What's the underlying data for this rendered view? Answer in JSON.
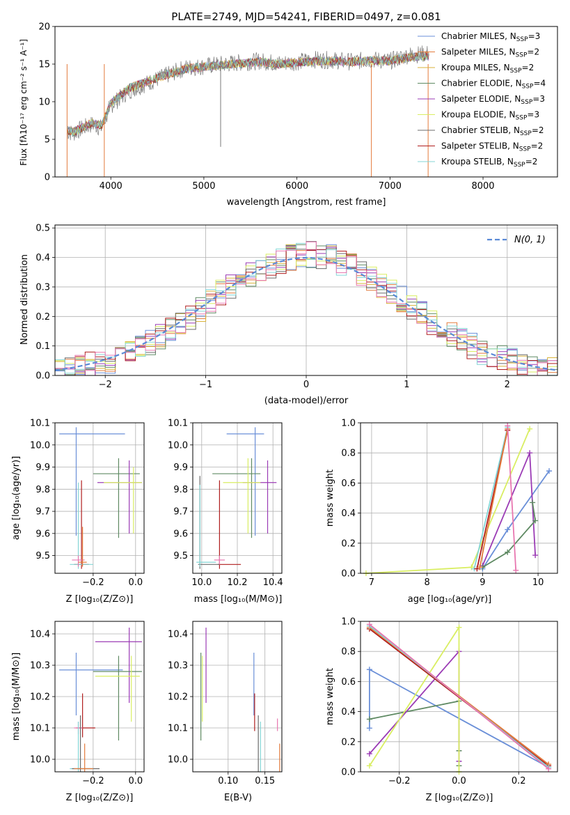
{
  "colors": {
    "chabrier_miles": "#6a8fd8",
    "salpeter_miles": "#e37b3c",
    "kroupa_miles": "#d8b23a",
    "chabrier_elodie": "#5f8a63",
    "salpeter_elodie": "#9b3bb5",
    "kroupa_elodie": "#d9ee62",
    "chabrier_stelib": "#6b6b6b",
    "salpeter_stelib": "#b01e1e",
    "kroupa_stelib": "#84d6d6",
    "pink": "#e877b0",
    "normal": "#5a8ad6"
  },
  "chart_data": [
    {
      "id": "spectrum",
      "type": "line",
      "title": "PLATE=2749, MJD=54241, FIBERID=0497, z=0.081",
      "xlabel": "wavelength [Angstrom, rest frame]",
      "ylabel": "Flux [fλ10⁻¹⁷ erg cm⁻² s⁻¹ A⁻¹]",
      "xlim": [
        3400,
        8800
      ],
      "ylim": [
        0,
        20
      ],
      "xticks": [
        4000,
        5000,
        6000,
        7000,
        8000
      ],
      "yticks": [
        0,
        5,
        10,
        15,
        20
      ],
      "legend_position": "right",
      "legend": [
        "Chabrier MILES, N_SSP=3",
        "Salpeter MILES, N_SSP=2",
        "Kroupa MILES, N_SSP=2",
        "Chabrier ELODIE, N_SSP=4",
        "Salpeter ELODIE, N_SSP=3",
        "Kroupa ELODIE, N_SSP=3",
        "Chabrier STELIB, N_SSP=2",
        "Salpeter STELIB, N_SSP=2",
        "Kroupa STELIB, N_SSP=2"
      ],
      "data_wavelength": [
        3530,
        3600,
        3700,
        3800,
        3900,
        4000,
        4200,
        4400,
        4600,
        4800,
        5000,
        5200,
        5400,
        5600,
        5800,
        6000,
        6200,
        6400,
        6600,
        6800,
        7000,
        7200,
        7420
      ],
      "data_flux": [
        6.0,
        5.8,
        6.5,
        7.0,
        6.5,
        9.5,
        11.5,
        12.5,
        13.5,
        14.5,
        14.7,
        15.0,
        15.2,
        15.4,
        15.1,
        15.3,
        15.6,
        15.5,
        15.3,
        15.6,
        15.4,
        16.2,
        16.4
      ],
      "model_wavelength": [
        3530,
        3600,
        3700,
        3800,
        3900,
        4000,
        4200,
        4400,
        4600,
        4800,
        5000,
        5200,
        5400,
        5600,
        5800,
        6000,
        6200,
        6400,
        6600,
        6800,
        7000,
        7200,
        7420
      ],
      "model_flux": [
        6.2,
        6.0,
        6.6,
        7.2,
        6.8,
        9.8,
        11.8,
        12.7,
        13.6,
        14.4,
        14.6,
        14.9,
        15.1,
        15.3,
        15.0,
        15.2,
        15.4,
        15.4,
        15.3,
        15.5,
        15.4,
        15.9,
        16.1
      ]
    },
    {
      "id": "residuals",
      "type": "bar",
      "xlabel": "(data-model)/error",
      "ylabel": "Normed distribution",
      "xlim": [
        -2.5,
        2.5
      ],
      "ylim": [
        0,
        0.51
      ],
      "xticks": [
        -2,
        -1,
        0,
        1,
        2
      ],
      "xtick_labels": [
        "−2",
        "−1",
        "0",
        "1",
        "2"
      ],
      "yticks": [
        0.0,
        0.1,
        0.2,
        0.3,
        0.4,
        0.5
      ],
      "ytick_labels": [
        "0.0",
        "0.1",
        "0.2",
        "0.3",
        "0.4",
        "0.5"
      ],
      "legend": [
        "N(0, 1)"
      ],
      "legend_position": "top-right",
      "bin_edges": [
        -2.5,
        -2.4,
        -2.3,
        -2.2,
        -2.1,
        -2.0,
        -1.9,
        -1.8,
        -1.7,
        -1.6,
        -1.5,
        -1.4,
        -1.3,
        -1.2,
        -1.1,
        -1.0,
        -0.9,
        -0.8,
        -0.7,
        -0.6,
        -0.5,
        -0.4,
        -0.3,
        -0.2,
        -0.1,
        0.0,
        0.1,
        0.2,
        0.3,
        0.4,
        0.5,
        0.6,
        0.7,
        0.8,
        0.9,
        1.0,
        1.1,
        1.2,
        1.3,
        1.4,
        1.5,
        1.6,
        1.7,
        1.8,
        1.9,
        2.0,
        2.1,
        2.2,
        2.3,
        2.4,
        2.5
      ],
      "base_values": [
        0.02,
        0.025,
        0.03,
        0.035,
        0.04,
        0.05,
        0.07,
        0.08,
        0.1,
        0.11,
        0.13,
        0.15,
        0.17,
        0.2,
        0.22,
        0.25,
        0.28,
        0.3,
        0.32,
        0.34,
        0.36,
        0.37,
        0.39,
        0.4,
        0.41,
        0.41,
        0.4,
        0.4,
        0.38,
        0.37,
        0.35,
        0.33,
        0.3,
        0.28,
        0.26,
        0.23,
        0.21,
        0.18,
        0.16,
        0.14,
        0.12,
        0.1,
        0.08,
        0.07,
        0.06,
        0.05,
        0.04,
        0.03,
        0.025,
        0.02
      ]
    },
    {
      "id": "age_vs_Z",
      "type": "scatter",
      "xlabel": "Z [log₁₀(Z/Z⊙)]",
      "ylabel": "age  [log₁₀(age/yr)]",
      "xlim": [
        -0.38,
        0.04
      ],
      "ylim": [
        9.42,
        10.1
      ],
      "xticks": [
        -0.2,
        0.0
      ],
      "xtick_labels": [
        "−0.2",
        "0.0"
      ],
      "yticks": [
        9.5,
        9.6,
        9.7,
        9.8,
        9.9,
        10.0,
        10.1
      ],
      "ytick_labels": [
        "9.5",
        "9.6",
        "9.7",
        "9.8",
        "9.9",
        "10.0",
        "10.1"
      ],
      "points": [
        {
          "c": "chabrier_miles",
          "x": -0.28,
          "y": 10.05,
          "xe": [
            -0.36,
            -0.05
          ],
          "ye": [
            9.59,
            10.08
          ]
        },
        {
          "c": "chabrier_elodie",
          "x": -0.08,
          "y": 9.87,
          "xe": [
            -0.2,
            0.02
          ],
          "ye": [
            9.58,
            9.94
          ]
        },
        {
          "c": "salpeter_elodie",
          "x": -0.03,
          "y": 9.83,
          "xe": [
            -0.18,
            0.03
          ],
          "ye": [
            9.6,
            9.93
          ]
        },
        {
          "c": "kroupa_elodie",
          "x": -0.01,
          "y": 9.83,
          "xe": [
            -0.15,
            0.03
          ],
          "ye": [
            9.6,
            9.9
          ]
        },
        {
          "c": "salpeter_stelib",
          "x": -0.255,
          "y": 9.46,
          "xe": [
            -0.29,
            -0.22
          ],
          "ye": [
            9.44,
            9.84
          ]
        },
        {
          "c": "kroupa_stelib",
          "x": -0.27,
          "y": 9.46,
          "xe": [
            -0.31,
            -0.2
          ],
          "ye": [
            9.44,
            9.83
          ]
        },
        {
          "c": "pink",
          "x": -0.27,
          "y": 9.48,
          "xe": [
            -0.3,
            -0.24
          ],
          "ye": [
            9.45,
            9.5
          ]
        },
        {
          "c": "salpeter_miles",
          "x": -0.25,
          "y": 9.47,
          "xe": [
            -0.27,
            -0.23
          ],
          "ye": [
            9.45,
            9.63
          ]
        }
      ]
    },
    {
      "id": "age_vs_mass",
      "type": "scatter",
      "xlabel": "mass [log₁₀(M/M⊙)]",
      "ylabel": "",
      "xlim": [
        9.95,
        10.45
      ],
      "ylim": [
        9.42,
        10.1
      ],
      "xticks": [
        10.0,
        10.2,
        10.4
      ],
      "xtick_labels": [
        "10.0",
        "10.2",
        "10.4"
      ],
      "yticks": [
        9.5,
        9.6,
        9.7,
        9.8,
        9.9,
        10.0,
        10.1
      ],
      "ytick_labels": [
        "9.5",
        "9.6",
        "9.7",
        "9.8",
        "9.9",
        "10.0",
        "10.1"
      ],
      "points": [
        {
          "c": "chabrier_miles",
          "x": 10.3,
          "y": 10.05,
          "xe": [
            10.14,
            10.35
          ],
          "ye": [
            9.59,
            10.08
          ]
        },
        {
          "c": "chabrier_elodie",
          "x": 10.28,
          "y": 9.87,
          "xe": [
            10.06,
            10.33
          ],
          "ye": [
            9.58,
            9.94
          ]
        },
        {
          "c": "salpeter_elodie",
          "x": 10.37,
          "y": 9.83,
          "xe": [
            10.23,
            10.42
          ],
          "ye": [
            9.6,
            9.93
          ]
        },
        {
          "c": "kroupa_elodie",
          "x": 10.26,
          "y": 9.83,
          "xe": [
            10.12,
            10.33
          ],
          "ye": [
            9.6,
            9.94
          ]
        },
        {
          "c": "salpeter_stelib",
          "x": 10.1,
          "y": 9.46,
          "xe": [
            10.09,
            10.22
          ],
          "ye": [
            9.44,
            9.84
          ]
        },
        {
          "c": "chabrier_stelib",
          "x": 9.99,
          "y": 9.46,
          "xe": [
            9.98,
            10.1
          ],
          "ye": [
            9.44,
            9.86
          ]
        },
        {
          "c": "kroupa_stelib",
          "x": 9.99,
          "y": 9.47,
          "xe": [
            9.97,
            10.08
          ],
          "ye": [
            9.45,
            9.82
          ]
        },
        {
          "c": "pink",
          "x": 10.1,
          "y": 9.48,
          "xe": [
            10.07,
            10.13
          ],
          "ye": [
            9.46,
            9.5
          ]
        }
      ]
    },
    {
      "id": "weight_vs_age",
      "type": "line",
      "xlabel": "age  [log₁₀(age/yr)]",
      "ylabel": "mass weight",
      "xlim": [
        6.8,
        10.35
      ],
      "ylim": [
        0,
        1
      ],
      "xticks": [
        7,
        8,
        9,
        10
      ],
      "xtick_labels": [
        "7",
        "8",
        "9",
        "10"
      ],
      "yticks": [
        0.0,
        0.2,
        0.4,
        0.6,
        0.8,
        1.0
      ],
      "ytick_labels": [
        "0.0",
        "0.2",
        "0.4",
        "0.6",
        "0.8",
        "1.0"
      ],
      "series": [
        {
          "c": "kroupa_elodie",
          "x": [
            6.9,
            8.8,
            9.85
          ],
          "y": [
            0.0,
            0.04,
            0.96
          ]
        },
        {
          "c": "chabrier_miles",
          "x": [
            9.0,
            9.45,
            10.2
          ],
          "y": [
            0.03,
            0.29,
            0.68
          ]
        },
        {
          "c": "salpeter_elodie",
          "x": [
            9.0,
            9.85,
            9.95
          ],
          "y": [
            0.05,
            0.8,
            0.12
          ]
        },
        {
          "c": "chabrier_elodie",
          "x": [
            9.0,
            9.45,
            9.95,
            9.9
          ],
          "y": [
            0.04,
            0.14,
            0.35,
            0.47
          ]
        },
        {
          "c": "kroupa_stelib",
          "x": [
            8.85,
            9.45
          ],
          "y": [
            0.03,
            0.97
          ]
        },
        {
          "c": "salpeter_stelib",
          "x": [
            8.9,
            9.45
          ],
          "y": [
            0.03,
            0.95
          ]
        },
        {
          "c": "salpeter_miles",
          "x": [
            8.95,
            9.45
          ],
          "y": [
            0.04,
            0.96
          ]
        },
        {
          "c": "pink",
          "x": [
            9.45,
            9.6
          ],
          "y": [
            0.98,
            0.02
          ]
        }
      ]
    },
    {
      "id": "mass_vs_Z",
      "type": "scatter",
      "xlabel": "Z [log₁₀(Z/Z⊙)]",
      "ylabel": "mass [log₁₀(M/M⊙)]",
      "xlim": [
        -0.38,
        0.04
      ],
      "ylim": [
        9.96,
        10.44
      ],
      "xticks": [
        -0.2,
        0.0
      ],
      "xtick_labels": [
        "−0.2",
        "0.0"
      ],
      "yticks": [
        10.0,
        10.1,
        10.2,
        10.3,
        10.4
      ],
      "ytick_labels": [
        "10.0",
        "10.1",
        "10.2",
        "10.3",
        "10.4"
      ],
      "points": [
        {
          "c": "chabrier_miles",
          "x": -0.28,
          "y": 10.285,
          "xe": [
            -0.36,
            -0.06
          ],
          "ye": [
            10.14,
            10.34
          ]
        },
        {
          "c": "salpeter_elodie",
          "x": -0.03,
          "y": 10.375,
          "xe": [
            -0.19,
            0.03
          ],
          "ye": [
            10.18,
            10.42
          ]
        },
        {
          "c": "chabrier_elodie",
          "x": -0.08,
          "y": 10.28,
          "xe": [
            -0.2,
            0.03
          ],
          "ye": [
            10.06,
            10.33
          ]
        },
        {
          "c": "kroupa_elodie",
          "x": -0.02,
          "y": 10.265,
          "xe": [
            -0.19,
            0.02
          ],
          "ye": [
            10.12,
            10.33
          ]
        },
        {
          "c": "salpeter_stelib",
          "x": -0.25,
          "y": 10.1,
          "xe": [
            -0.28,
            -0.19
          ],
          "ye": [
            10.07,
            10.21
          ]
        },
        {
          "c": "pink",
          "x": -0.27,
          "y": 10.1,
          "xe": [
            -0.29,
            -0.25
          ],
          "ye": [
            10.08,
            10.12
          ]
        },
        {
          "c": "kroupa_stelib",
          "x": -0.27,
          "y": 9.97,
          "xe": [
            -0.31,
            -0.2
          ],
          "ye": [
            9.96,
            10.12
          ]
        },
        {
          "c": "chabrier_stelib",
          "x": -0.26,
          "y": 9.97,
          "xe": [
            -0.3,
            -0.17
          ],
          "ye": [
            9.96,
            10.14
          ]
        },
        {
          "c": "salpeter_miles",
          "x": -0.24,
          "y": 9.97,
          "xe": [
            -0.29,
            -0.2
          ],
          "ye": [
            9.96,
            10.05
          ]
        }
      ]
    },
    {
      "id": "mass_vs_ebv",
      "type": "scatter",
      "xlabel": "E(B-V)",
      "ylabel": "",
      "xlim": [
        0.052,
        0.173
      ],
      "ylim": [
        9.96,
        10.44
      ],
      "xticks": [
        0.1,
        0.15
      ],
      "xtick_labels": [
        "0.10",
        "0.15"
      ],
      "yticks": [
        10.0,
        10.1,
        10.2,
        10.3,
        10.4
      ],
      "ytick_labels": [
        "10.0",
        "10.1",
        "10.2",
        "10.3",
        "10.4"
      ],
      "points": [
        {
          "c": "chabrier_elodie",
          "x": 0.063,
          "ye": [
            10.06,
            10.34
          ]
        },
        {
          "c": "kroupa_elodie",
          "x": 0.065,
          "ye": [
            10.12,
            10.33
          ]
        },
        {
          "c": "salpeter_elodie",
          "x": 0.07,
          "ye": [
            10.18,
            10.42
          ]
        },
        {
          "c": "chabrier_miles",
          "x": 0.135,
          "ye": [
            10.14,
            10.34
          ]
        },
        {
          "c": "salpeter_stelib",
          "x": 0.136,
          "ye": [
            10.09,
            10.21
          ]
        },
        {
          "c": "chabrier_stelib",
          "x": 0.141,
          "ye": [
            9.96,
            10.14
          ]
        },
        {
          "c": "kroupa_stelib",
          "x": 0.144,
          "ye": [
            9.96,
            10.12
          ]
        },
        {
          "c": "pink",
          "x": 0.167,
          "ye": [
            10.09,
            10.13
          ]
        },
        {
          "c": "salpeter_miles",
          "x": 0.17,
          "ye": [
            9.96,
            10.05
          ]
        }
      ]
    },
    {
      "id": "weight_vs_Z",
      "type": "line",
      "xlabel": "Z [log₁₀(Z/Z⊙)]",
      "ylabel": "mass weight",
      "xlim": [
        -0.33,
        0.33
      ],
      "ylim": [
        0,
        1
      ],
      "xticks": [
        -0.2,
        0.0,
        0.2
      ],
      "xtick_labels": [
        "−0.2",
        "0.0",
        "0.2"
      ],
      "yticks": [
        0.0,
        0.2,
        0.4,
        0.6,
        0.8,
        1.0
      ],
      "ytick_labels": [
        "0.0",
        "0.2",
        "0.4",
        "0.6",
        "0.8",
        "1.0"
      ],
      "series": [
        {
          "c": "chabrier_miles",
          "x": [
            -0.3,
            -0.3,
            0.3
          ],
          "y": [
            0.29,
            0.68,
            0.03
          ]
        },
        {
          "c": "chabrier_elodie",
          "x": [
            -0.3,
            0.0,
            0.0,
            0.0
          ],
          "y": [
            0.35,
            0.47,
            0.14,
            0.04
          ]
        },
        {
          "c": "salpeter_elodie",
          "x": [
            -0.3,
            0.0,
            0.0
          ],
          "y": [
            0.12,
            0.8,
            0.07
          ]
        },
        {
          "c": "kroupa_elodie",
          "x": [
            -0.3,
            0.0,
            0.0
          ],
          "y": [
            0.04,
            0.96,
            0.0
          ]
        },
        {
          "c": "salpeter_stelib",
          "x": [
            -0.3,
            0.3
          ],
          "y": [
            0.95,
            0.04
          ]
        },
        {
          "c": "salpeter_miles",
          "x": [
            -0.3,
            0.3
          ],
          "y": [
            0.96,
            0.05
          ]
        },
        {
          "c": "kroupa_stelib",
          "x": [
            -0.3,
            0.3
          ],
          "y": [
            0.97,
            0.03
          ]
        },
        {
          "c": "pink",
          "x": [
            -0.3,
            0.3
          ],
          "y": [
            0.98,
            0.02
          ]
        }
      ]
    }
  ]
}
